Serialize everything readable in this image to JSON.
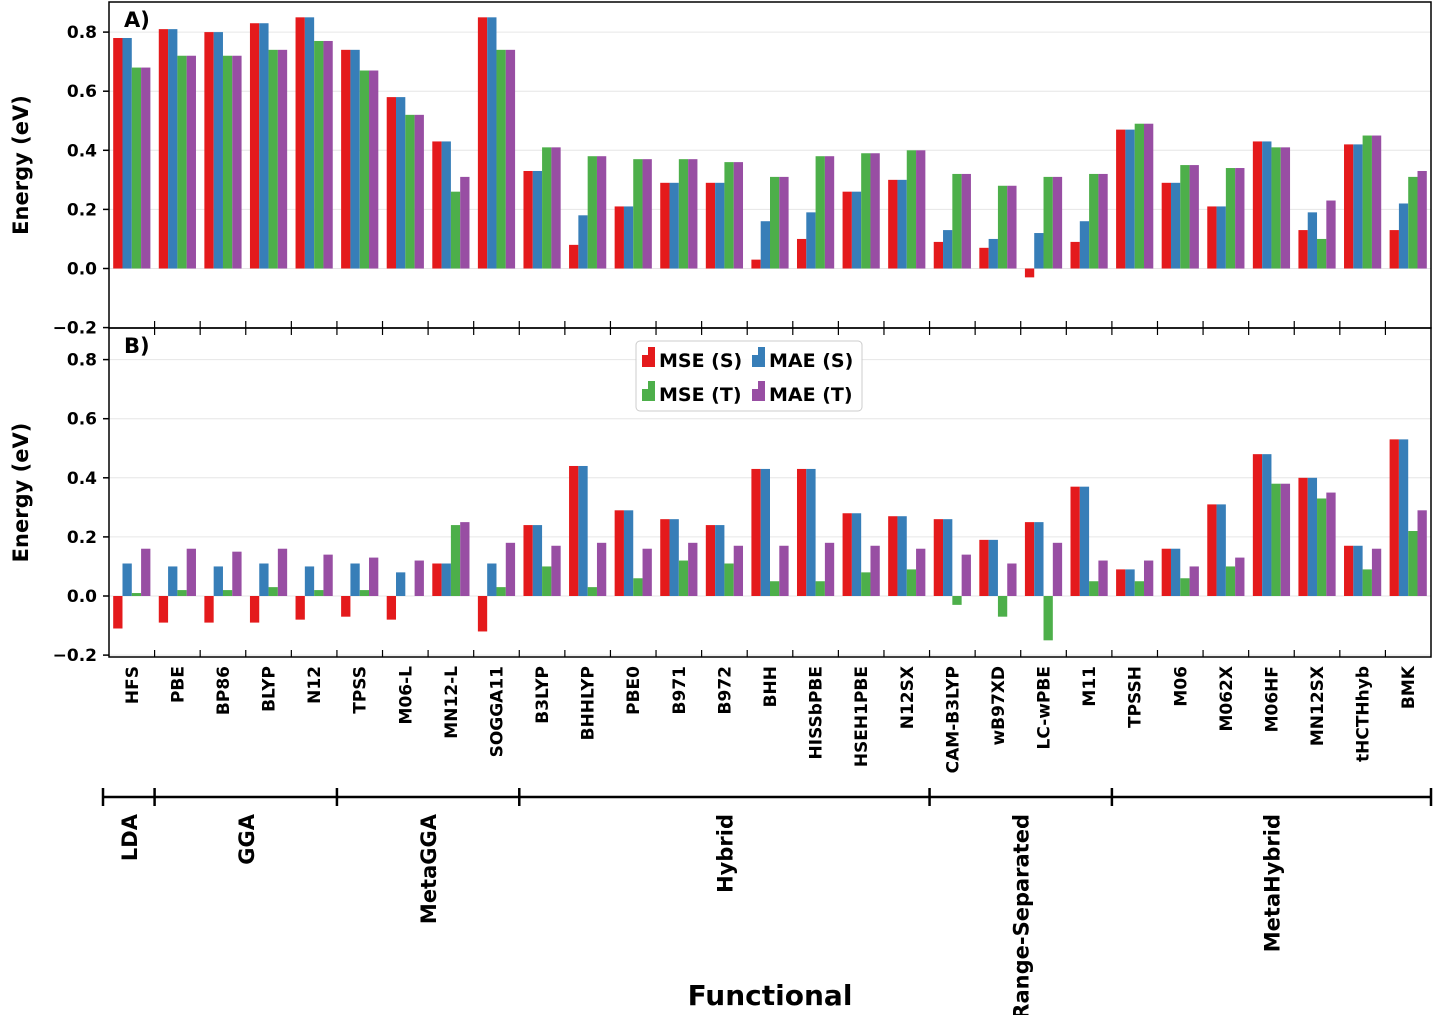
{
  "chart_data": {
    "type": "bar",
    "xlabel": "Functional",
    "ylabel": "Energy (eV)",
    "ylim": [
      -0.2,
      0.9
    ],
    "yticks": [
      0.8,
      0.6,
      0.4,
      0.2,
      0.0,
      -0.2
    ],
    "ytick_labels": [
      "0.8",
      "0.6",
      "0.4",
      "0.2",
      "0.0",
      "−0.2"
    ],
    "categories": [
      "HFS",
      "PBE",
      "BP86",
      "BLYP",
      "N12",
      "TPSS",
      "M06-L",
      "MN12-L",
      "SOGGA11",
      "B3LYP",
      "BHHLYP",
      "PBE0",
      "B971",
      "B972",
      "BHH",
      "HISSbPBE",
      "HSEH1PBE",
      "N12SX",
      "CAM-B3LYP",
      "wB97XD",
      "LC-wPBE",
      "M11",
      "TPSSH",
      "M06",
      "M062X",
      "M06HF",
      "MN12SX",
      "tHCTHhyb",
      "BMK"
    ],
    "groups": [
      {
        "name": "LDA",
        "start": 0,
        "end": 0
      },
      {
        "name": "GGA",
        "start": 1,
        "end": 4
      },
      {
        "name": "MetaGGA",
        "start": 5,
        "end": 8
      },
      {
        "name": "Hybrid",
        "start": 9,
        "end": 17
      },
      {
        "name": "Range-Separated",
        "start": 18,
        "end": 21
      },
      {
        "name": "MetaHybrid",
        "start": 22,
        "end": 28
      }
    ],
    "series_colors": {
      "MSE (S)": "#e41a1c",
      "MAE (S)": "#377eb8",
      "MSE (T)": "#4daf4a",
      "MAE (T)": "#984ea3"
    },
    "legend_entries": [
      "MSE (S)",
      "MAE (S)",
      "MSE (T)",
      "MAE (T)"
    ],
    "legend_location": "upper-center of panel B",
    "panels": [
      {
        "label": "A)",
        "series": [
          {
            "name": "MSE (S)",
            "values": [
              0.78,
              0.81,
              0.8,
              0.83,
              0.85,
              0.74,
              0.58,
              0.43,
              0.85,
              0.33,
              0.08,
              0.21,
              0.29,
              0.29,
              0.03,
              0.1,
              0.26,
              0.3,
              0.09,
              0.07,
              -0.03,
              0.09,
              0.47,
              0.29,
              0.21,
              0.43,
              0.13,
              0.42,
              0.13
            ]
          },
          {
            "name": "MAE (S)",
            "values": [
              0.78,
              0.81,
              0.8,
              0.83,
              0.85,
              0.74,
              0.58,
              0.43,
              0.85,
              0.33,
              0.18,
              0.21,
              0.29,
              0.29,
              0.16,
              0.19,
              0.26,
              0.3,
              0.13,
              0.1,
              0.12,
              0.16,
              0.47,
              0.29,
              0.21,
              0.43,
              0.19,
              0.42,
              0.22
            ]
          },
          {
            "name": "MSE (T)",
            "values": [
              0.68,
              0.72,
              0.72,
              0.74,
              0.77,
              0.67,
              0.52,
              0.26,
              0.74,
              0.41,
              0.38,
              0.37,
              0.37,
              0.36,
              0.31,
              0.38,
              0.39,
              0.4,
              0.32,
              0.28,
              0.31,
              0.32,
              0.49,
              0.35,
              0.34,
              0.41,
              0.1,
              0.45,
              0.31
            ]
          },
          {
            "name": "MAE (T)",
            "values": [
              0.68,
              0.72,
              0.72,
              0.74,
              0.77,
              0.67,
              0.52,
              0.31,
              0.74,
              0.41,
              0.38,
              0.37,
              0.37,
              0.36,
              0.31,
              0.38,
              0.39,
              0.4,
              0.32,
              0.28,
              0.31,
              0.32,
              0.49,
              0.35,
              0.34,
              0.41,
              0.23,
              0.45,
              0.33
            ]
          }
        ]
      },
      {
        "label": "B)",
        "series": [
          {
            "name": "MSE (S)",
            "values": [
              -0.11,
              -0.09,
              -0.09,
              -0.09,
              -0.08,
              -0.07,
              -0.08,
              0.11,
              -0.12,
              0.24,
              0.44,
              0.29,
              0.26,
              0.24,
              0.43,
              0.43,
              0.28,
              0.27,
              0.26,
              0.19,
              0.25,
              0.37,
              0.09,
              0.16,
              0.31,
              0.48,
              0.4,
              0.17,
              0.53
            ]
          },
          {
            "name": "MAE (S)",
            "values": [
              0.11,
              0.1,
              0.1,
              0.11,
              0.1,
              0.11,
              0.08,
              0.11,
              0.11,
              0.24,
              0.44,
              0.29,
              0.26,
              0.24,
              0.43,
              0.43,
              0.28,
              0.27,
              0.26,
              0.19,
              0.25,
              0.37,
              0.09,
              0.16,
              0.31,
              0.48,
              0.4,
              0.17,
              0.53
            ]
          },
          {
            "name": "MSE (T)",
            "values": [
              0.01,
              0.02,
              0.02,
              0.03,
              0.02,
              0.02,
              0.0,
              0.24,
              0.03,
              0.1,
              0.03,
              0.06,
              0.12,
              0.11,
              0.05,
              0.05,
              0.08,
              0.09,
              -0.03,
              -0.07,
              -0.15,
              0.05,
              0.05,
              0.06,
              0.1,
              0.38,
              0.33,
              0.09,
              0.22
            ]
          },
          {
            "name": "MAE (T)",
            "values": [
              0.16,
              0.16,
              0.15,
              0.16,
              0.14,
              0.13,
              0.12,
              0.25,
              0.18,
              0.17,
              0.18,
              0.16,
              0.18,
              0.17,
              0.17,
              0.18,
              0.17,
              0.16,
              0.14,
              0.11,
              0.18,
              0.12,
              0.12,
              0.1,
              0.13,
              0.38,
              0.35,
              0.16,
              0.29
            ]
          }
        ]
      }
    ]
  }
}
